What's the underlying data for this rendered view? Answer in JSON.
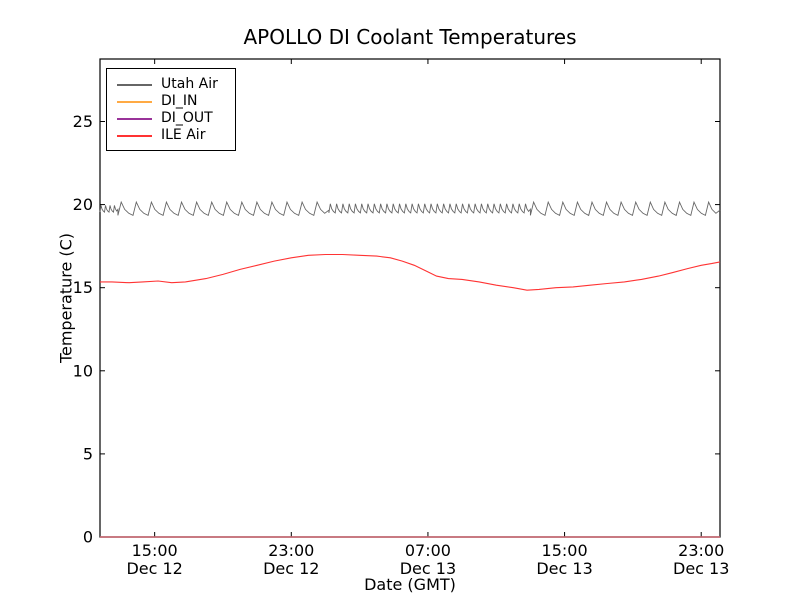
{
  "title": "APOLLO DI Coolant Temperatures",
  "axes": {
    "xlabel": "Date (GMT)",
    "ylabel": "Temperature (C)",
    "x_range": [
      -0.2,
      36.1
    ],
    "y_range": [
      0,
      28.76
    ],
    "x_ticks": [
      {
        "h": 3,
        "time": "15:00",
        "date": "Dec 12"
      },
      {
        "h": 11,
        "time": "23:00",
        "date": "Dec 12"
      },
      {
        "h": 19,
        "time": "07:00",
        "date": "Dec 13"
      },
      {
        "h": 27,
        "time": "15:00",
        "date": "Dec 13"
      },
      {
        "h": 35,
        "time": "23:00",
        "date": "Dec 13"
      }
    ],
    "y_ticks": [
      0,
      5,
      10,
      15,
      20,
      25
    ]
  },
  "legend": [
    {
      "label": "Utah Air",
      "color": "#666666"
    },
    {
      "label": "DI_IN",
      "color": "#ffaa44"
    },
    {
      "label": "DI_OUT",
      "color": "#993399"
    },
    {
      "label": "ILE Air",
      "color": "#ff3333"
    }
  ],
  "chart_data": {
    "type": "line",
    "title": "APOLLO DI Coolant Temperatures",
    "xlabel": "Date (GMT)",
    "ylabel": "Temperature (C)",
    "x_unit": "hours since Dec 12 12:00 GMT",
    "xlim": [
      -0.2,
      36.1
    ],
    "ylim": [
      0,
      28.76
    ],
    "grid": false,
    "legend_position": "upper left",
    "series": [
      {
        "name": "Utah Air",
        "color": "#666666",
        "style": "sawtooth",
        "description": "air temperature oscillating around 19.3-20.2 C",
        "sawtooth_segments": [
          {
            "from": -0.2,
            "to": 0.85,
            "cycles": 4,
            "min": 19.55,
            "max": 19.95
          },
          {
            "from": 0.85,
            "to": 13.2,
            "cycles": 14,
            "min": 19.35,
            "max": 20.15
          },
          {
            "from": 13.2,
            "to": 25.0,
            "cycles": 32,
            "min": 19.5,
            "max": 20.05
          },
          {
            "from": 25.0,
            "to": 36.1,
            "cycles": 13,
            "min": 19.35,
            "max": 20.15
          }
        ]
      },
      {
        "name": "DI_IN",
        "color": "#ffaa44",
        "style": "line",
        "description": "constant at 0 C (flat on x-axis)",
        "points": [
          [
            -0.2,
            0
          ],
          [
            36.1,
            0
          ]
        ]
      },
      {
        "name": "DI_OUT",
        "color": "#993399",
        "style": "line",
        "description": "constant at 0 C (flat on x-axis)",
        "points": [
          [
            -0.2,
            0
          ],
          [
            36.1,
            0
          ]
        ]
      },
      {
        "name": "ILE Air",
        "color": "#ff3333",
        "style": "line",
        "points": [
          [
            -0.2,
            15.35
          ],
          [
            0.5,
            15.35
          ],
          [
            1.5,
            15.3
          ],
          [
            2.3,
            15.35
          ],
          [
            3.2,
            15.4
          ],
          [
            4.0,
            15.3
          ],
          [
            4.8,
            15.35
          ],
          [
            6.0,
            15.55
          ],
          [
            7.0,
            15.8
          ],
          [
            8.0,
            16.1
          ],
          [
            9.0,
            16.35
          ],
          [
            10.0,
            16.6
          ],
          [
            11.0,
            16.8
          ],
          [
            12.0,
            16.95
          ],
          [
            13.0,
            17.0
          ],
          [
            14.0,
            17.0
          ],
          [
            15.0,
            16.95
          ],
          [
            16.0,
            16.9
          ],
          [
            16.8,
            16.8
          ],
          [
            17.5,
            16.6
          ],
          [
            18.2,
            16.35
          ],
          [
            19.0,
            15.95
          ],
          [
            19.5,
            15.7
          ],
          [
            20.2,
            15.55
          ],
          [
            21.0,
            15.5
          ],
          [
            22.0,
            15.35
          ],
          [
            23.0,
            15.15
          ],
          [
            24.0,
            15.0
          ],
          [
            24.8,
            14.85
          ],
          [
            25.5,
            14.9
          ],
          [
            26.5,
            15.0
          ],
          [
            27.5,
            15.05
          ],
          [
            28.5,
            15.15
          ],
          [
            29.5,
            15.25
          ],
          [
            30.5,
            15.35
          ],
          [
            31.5,
            15.5
          ],
          [
            32.5,
            15.7
          ],
          [
            33.3,
            15.9
          ],
          [
            34.2,
            16.15
          ],
          [
            35.0,
            16.35
          ],
          [
            35.6,
            16.45
          ],
          [
            36.1,
            16.55
          ]
        ]
      }
    ]
  }
}
